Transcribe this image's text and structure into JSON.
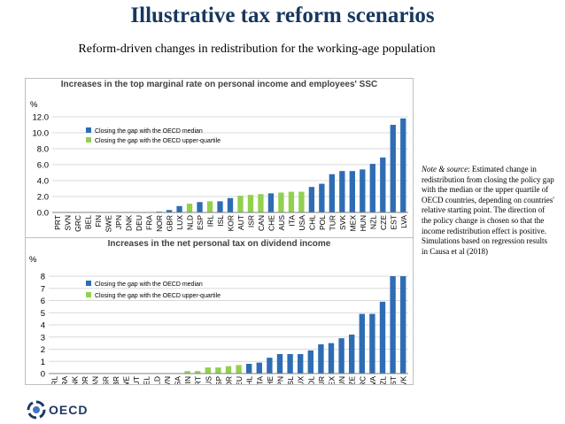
{
  "title": "Illustrative tax reform scenarios",
  "subtitle": "Reform-driven changes in redistribution for the working-age population",
  "note": {
    "label": "Note & source",
    "text": ": Estimated change in redistribution from closing the policy gap with the median or the upper quartile of OECD countries, depending on countries' relative starting point. The direction of the policy change is chosen so that the income redistribution effect is positive.",
    "text2": "Simulations based on regression results in Causa et al (2018)"
  },
  "logo": {
    "text": "OECD",
    "colors": [
      "#1f3864",
      "#4472c4",
      "#70ad47",
      "#8faadc"
    ]
  },
  "colors": {
    "median": "#2e6db4",
    "quartile": "#92d050"
  },
  "chart_data": [
    {
      "type": "bar",
      "title": "Increases in the top marginal rate on personal income and employees' SSC",
      "ylabel": "%",
      "ylim": [
        0,
        12
      ],
      "yticks": [
        "0.0",
        "2.0",
        "4.0",
        "6.0",
        "8.0",
        "10.0",
        "12.0"
      ],
      "legend": [
        "Closing  the gap with the OECD median",
        "Closing  the gap with the OECD upper-quartile"
      ],
      "categories": [
        "PRT",
        "SVN",
        "GRC",
        "BEL",
        "FIN",
        "SWE",
        "JPN",
        "DNK",
        "DEU",
        "FRA",
        "NOR",
        "GBR",
        "LUX",
        "NLD",
        "ESP",
        "IRL",
        "ISL",
        "KOR",
        "AUT",
        "ISR",
        "CAN",
        "CHE",
        "AUS",
        "ITA",
        "USA",
        "CHL",
        "POL",
        "TUR",
        "SVK",
        "MEX",
        "HUN",
        "NZL",
        "CZE",
        "EST",
        "LVA"
      ],
      "values": [
        0,
        0,
        0,
        0,
        0,
        0,
        0,
        0,
        0,
        0.05,
        0.1,
        0.3,
        0.8,
        1.1,
        1.3,
        1.4,
        1.4,
        1.8,
        2.1,
        2.2,
        2.3,
        2.4,
        2.5,
        2.6,
        2.6,
        3.2,
        3.6,
        4.8,
        5.2,
        5.2,
        5.4,
        6.1,
        6.9,
        11.0,
        11.8
      ],
      "group": [
        "q",
        "q",
        "q",
        "q",
        "q",
        "q",
        "q",
        "q",
        "q",
        "q",
        "m",
        "m",
        "m",
        "q",
        "m",
        "q",
        "m",
        "m",
        "q",
        "q",
        "q",
        "m",
        "q",
        "q",
        "q",
        "m",
        "m",
        "m",
        "m",
        "m",
        "m",
        "m",
        "m",
        "m",
        "m"
      ]
    },
    {
      "type": "bar",
      "title": "Increases in the net personal tax on dividend income",
      "ylabel": "%",
      "ylim": [
        0,
        8
      ],
      "yticks": [
        "0",
        "1",
        "2",
        "3",
        "4",
        "5",
        "6",
        "7",
        "8"
      ],
      "legend": [
        "Closing  the gap with the OECD median",
        "Closing  the gap with the OECD upper-quartile"
      ],
      "categories": [
        "IRL",
        "FRA",
        "DNK",
        "KOR",
        "CAN",
        "ISR",
        "GBR",
        "SWE",
        "AUT",
        "BEL",
        "NLD",
        "SVN",
        "USA",
        "FIN",
        "PRT",
        "AUS",
        "ESP",
        "NOR",
        "DEU",
        "CHL",
        "ITA",
        "CHE",
        "JPN",
        "ISL",
        "LUX",
        "POL",
        "TUR",
        "MEX",
        "HUN",
        "CZE",
        "GRC",
        "LVA",
        "NZL",
        "EST",
        "SVK"
      ],
      "values": [
        0,
        0,
        0,
        0,
        0,
        0,
        0,
        0,
        0,
        0,
        0,
        0,
        0,
        0.2,
        0.2,
        0.5,
        0.5,
        0.6,
        0.7,
        0.8,
        0.9,
        1.3,
        1.6,
        1.6,
        1.6,
        1.9,
        2.4,
        2.5,
        2.9,
        3.2,
        4.9,
        4.9,
        5.9,
        8.0,
        8.0
      ],
      "group": [
        "q",
        "q",
        "q",
        "q",
        "q",
        "q",
        "q",
        "q",
        "q",
        "q",
        "q",
        "q",
        "q",
        "q",
        "q",
        "q",
        "q",
        "q",
        "q",
        "m",
        "m",
        "m",
        "m",
        "m",
        "m",
        "m",
        "m",
        "m",
        "m",
        "m",
        "m",
        "m",
        "m",
        "m",
        "m"
      ]
    }
  ]
}
